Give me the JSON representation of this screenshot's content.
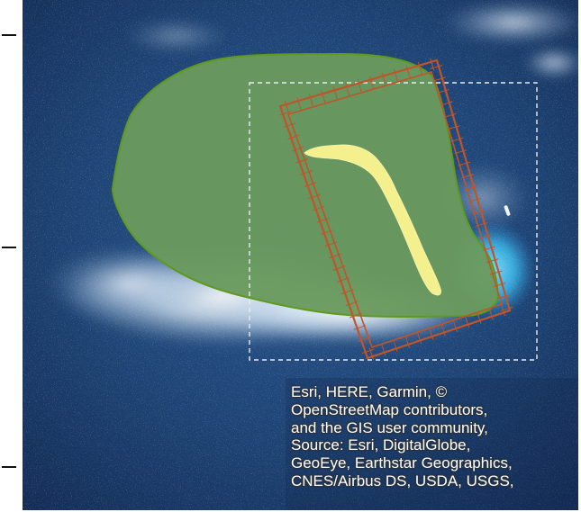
{
  "map": {
    "basemap": "satellite imagery",
    "colors": {
      "ocean_deep": "#163461",
      "ocean_mid": "#234a7e",
      "surf": "#d6ecf7",
      "shallow_cyan": "#39b7e6",
      "polygon_fill": "#6a9a5e",
      "polygon_stroke": "#5f9a1c",
      "sandbar_fill": "#f4f08e",
      "survey_grid": "#c0542a",
      "dashed_extent": "#e8ecf0",
      "frame": "#111111"
    },
    "layers": [
      "area-polygon",
      "sandbar-polygon",
      "survey-grid-rectangle",
      "dashed-extent-rectangle"
    ],
    "attribution_lines": [
      "Esri, HERE, Garmin, ©",
      "OpenStreetMap contributors,",
      "and the GIS user community,",
      "Source: Esri, DigitalGlobe,",
      "GeoEye, Earthstar Geographics,",
      "CNES/Airbus DS, USDA, USGS,"
    ]
  }
}
